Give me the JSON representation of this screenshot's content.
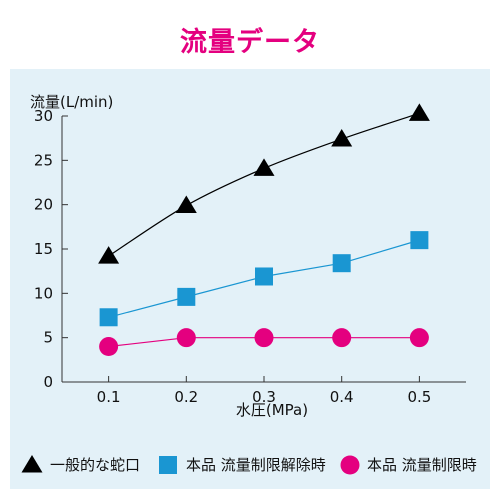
{
  "chart_data": {
    "type": "line",
    "title": "流量データ",
    "xlabel": "水圧(MPa)",
    "ylabel": "流量(L/min)",
    "x": [
      0.1,
      0.2,
      0.3,
      0.4,
      0.5
    ],
    "x_tick_labels": [
      "0.1",
      "0.2",
      "0.3",
      "0.4",
      "0.5"
    ],
    "y_tick_labels": [
      "0",
      "5",
      "10",
      "15",
      "20",
      "25",
      "30"
    ],
    "ylim": [
      0,
      30
    ],
    "xlim": [
      0.04,
      0.56
    ],
    "grid": false,
    "legend_position": "bottom",
    "series": [
      {
        "name": "一般的な蛇口",
        "marker": "triangle",
        "color": "#000000",
        "line_color": "#000000",
        "values": [
          14.2,
          19.9,
          24.1,
          27.4,
          30.3
        ]
      },
      {
        "name": "本品 流量制限解除時",
        "marker": "square",
        "color": "#1a96d2",
        "line_color": "#1a96d2",
        "values": [
          7.3,
          9.6,
          11.9,
          13.4,
          16.0
        ]
      },
      {
        "name": "本品 流量制限時",
        "marker": "circle",
        "color": "#e4007f",
        "line_color": "#e4007f",
        "values": [
          4.0,
          5.0,
          5.0,
          5.0,
          5.0
        ]
      }
    ]
  }
}
